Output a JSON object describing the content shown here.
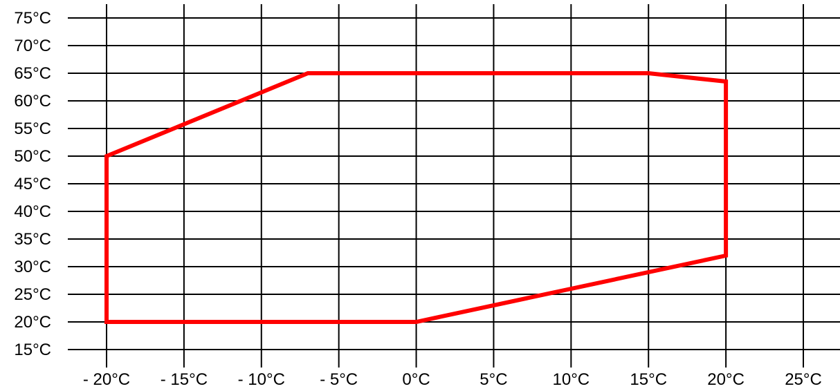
{
  "chart_data": {
    "type": "line",
    "title": "",
    "xlabel": "",
    "ylabel": "",
    "xlim": [
      -20,
      25
    ],
    "ylim": [
      15,
      75
    ],
    "x_ticks": [
      -20,
      -15,
      -10,
      -5,
      0,
      5,
      10,
      15,
      20,
      25
    ],
    "x_tick_labels": [
      "- 20°C",
      "- 15°C",
      "- 10°C",
      "- 5°C",
      "0°C",
      "5°C",
      "10°C",
      "15°C",
      "20°C",
      "25°C"
    ],
    "y_ticks": [
      75,
      70,
      65,
      60,
      55,
      50,
      45,
      40,
      35,
      30,
      25,
      20,
      15
    ],
    "y_tick_labels": [
      "75°C",
      "70°C",
      "65°C",
      "60°C",
      "55°C",
      "50°C",
      "45°C",
      "40°C",
      "35°C",
      "30°C",
      "25°C",
      "20°C",
      "15°C"
    ],
    "grid": true,
    "series": [
      {
        "color": "#ff0000",
        "closed": true,
        "points": [
          {
            "x": -20,
            "y": 20
          },
          {
            "x": 0,
            "y": 20
          },
          {
            "x": 20,
            "y": 32
          },
          {
            "x": 20,
            "y": 63.5
          },
          {
            "x": 15,
            "y": 65
          },
          {
            "x": -7,
            "y": 65
          },
          {
            "x": -20,
            "y": 50
          }
        ]
      }
    ]
  }
}
